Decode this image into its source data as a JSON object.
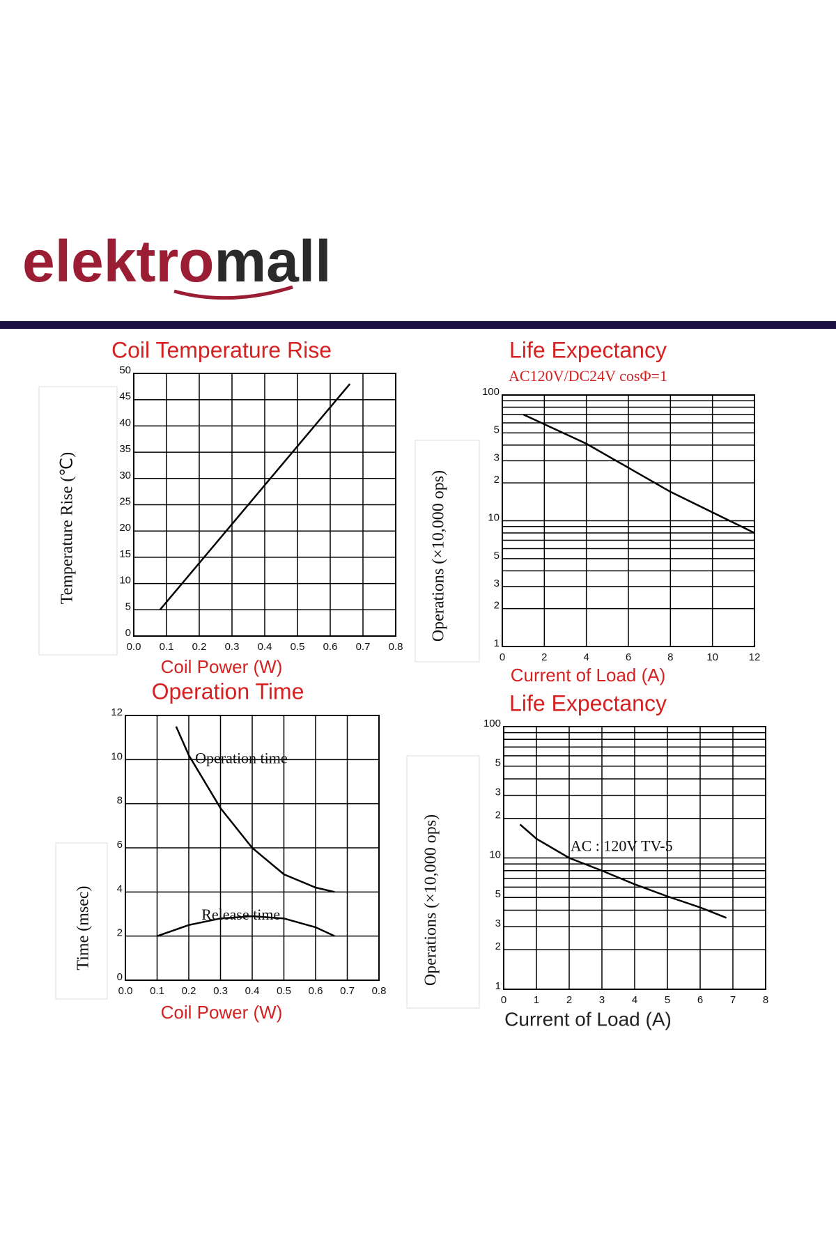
{
  "brand": {
    "parts": [
      "elektro",
      "mall"
    ]
  },
  "chart_data": [
    {
      "type": "line",
      "title": "Coil Temperature Rise",
      "xlabel": "Coil Power (W)",
      "ylabel": "Temperature Rise (℃)",
      "x": [
        0.08,
        0.66
      ],
      "values": [
        5,
        48
      ],
      "color": "#000000",
      "xlim": [
        0,
        0.8
      ],
      "xticks": [
        {
          "value": 0,
          "label": "0.0"
        },
        0.1,
        0.2,
        0.3,
        0.4,
        0.5,
        0.6,
        0.7,
        0.8
      ],
      "ylim": [
        0,
        50
      ],
      "yticks": [
        0,
        5,
        10,
        15,
        20,
        25,
        30,
        35,
        40,
        45,
        50
      ],
      "grid": true,
      "log_y": false
    },
    {
      "type": "line",
      "title": "Life Expectancy",
      "subtitle": "AC120V/DC24V cosΦ=1",
      "xlabel": "Current of Load (A)",
      "ylabel": "Operations (×10,000 ops)",
      "x": [
        1,
        4,
        8,
        12
      ],
      "values": [
        70,
        41,
        17,
        8
      ],
      "color": "#000000",
      "xlim": [
        0,
        12
      ],
      "xticks": [
        0,
        2,
        4,
        6,
        8,
        10,
        12
      ],
      "ylim": [
        1,
        100
      ],
      "yticks": [
        1,
        2,
        3,
        {
          "value": 5,
          "label": "5"
        },
        10,
        {
          "value": 20,
          "label": "2"
        },
        {
          "value": 30,
          "label": "3"
        },
        {
          "value": 50,
          "label": "5"
        },
        100
      ],
      "y_minor_ticks": [
        4,
        6,
        7,
        8,
        9,
        40,
        60,
        70,
        80,
        90
      ],
      "grid": true,
      "log_y": true
    },
    {
      "type": "line",
      "title": "Operation Time",
      "xlabel": "Coil Power (W)",
      "ylabel": "Time (msec)",
      "series": [
        {
          "name": "Operation time",
          "color": "#000000",
          "x": [
            0.16,
            0.2,
            0.3,
            0.4,
            0.5,
            0.6,
            0.66
          ],
          "values": [
            11.5,
            10.2,
            7.8,
            6.0,
            4.8,
            4.2,
            4.0
          ]
        },
        {
          "name": "Release time",
          "color": "#000000",
          "x": [
            0.1,
            0.2,
            0.3,
            0.4,
            0.5,
            0.6,
            0.66
          ],
          "values": [
            2.0,
            2.5,
            2.8,
            2.9,
            2.8,
            2.4,
            2.0
          ]
        }
      ],
      "xlim": [
        0,
        0.8
      ],
      "xticks": [
        {
          "value": 0,
          "label": "0.0"
        },
        0.1,
        0.2,
        0.3,
        0.4,
        0.5,
        0.6,
        0.7,
        0.8
      ],
      "ylim": [
        0,
        12
      ],
      "yticks": [
        0,
        2,
        4,
        6,
        8,
        10,
        12
      ],
      "grid": true,
      "log_y": false
    },
    {
      "type": "line",
      "title": "Life Expectancy",
      "annotation": "AC : 120V TV-5",
      "xlabel": "Current of Load (A)",
      "ylabel": "Operations (×10,000 ops)",
      "x": [
        0.5,
        1,
        2,
        3,
        4,
        5,
        6,
        6.8
      ],
      "values": [
        18,
        14,
        10,
        8,
        6.3,
        5.1,
        4.2,
        3.5
      ],
      "color": "#000000",
      "xlim": [
        0,
        8
      ],
      "xticks": [
        0,
        1,
        2,
        3,
        4,
        5,
        6,
        7,
        8
      ],
      "ylim": [
        1,
        100
      ],
      "yticks": [
        1,
        2,
        3,
        {
          "value": 5,
          "label": "5"
        },
        10,
        {
          "value": 20,
          "label": "2"
        },
        {
          "value": 30,
          "label": "3"
        },
        {
          "value": 50,
          "label": "5"
        },
        100
      ],
      "y_minor_ticks": [
        4,
        6,
        7,
        8,
        9,
        40,
        60,
        70,
        80,
        90
      ],
      "grid": true,
      "log_y": true
    }
  ]
}
